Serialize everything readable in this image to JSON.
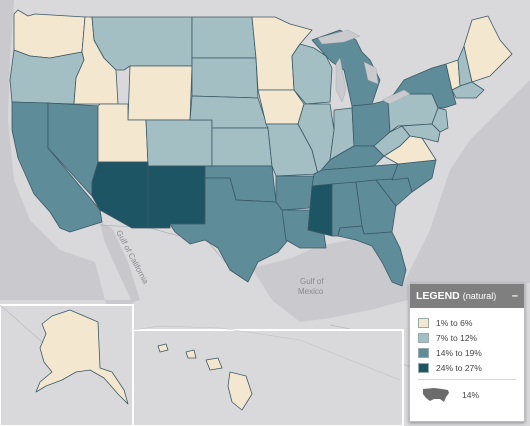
{
  "legend": {
    "title": "LEGEND",
    "subtitle": "(natural)",
    "minimize_label": "–",
    "classes": [
      {
        "label": "1% to 6%",
        "color": "#f3e8cf"
      },
      {
        "label": "7% to 12%",
        "color": "#a3bfc3"
      },
      {
        "label": "14% to 19%",
        "color": "#5f8c99"
      },
      {
        "label": "24% to 27%",
        "color": "#1e5564"
      }
    ],
    "us_value": "14%"
  },
  "map_labels": {
    "gulf_of_california": "Gulf of California",
    "gulf_of_mexico_line1": "Gulf of",
    "gulf_of_mexico_line2": "Mexico"
  },
  "colors": {
    "background_land": "#d9d9db",
    "water": "#c9c9cd",
    "state_border": "#3b5866"
  },
  "state_values": {
    "WA": "1% to 6%",
    "OR": "7% to 12%",
    "CA": "14% to 19%",
    "NV": "14% to 19%",
    "ID": "1% to 6%",
    "MT": "7% to 12%",
    "WY": "1% to 6%",
    "UT": "1% to 6%",
    "CO": "7% to 12%",
    "AZ": "24% to 27%",
    "NM": "24% to 27%",
    "ND": "7% to 12%",
    "SD": "7% to 12%",
    "NE": "7% to 12%",
    "KS": "7% to 12%",
    "OK": "14% to 19%",
    "TX": "14% to 19%",
    "MN": "1% to 6%",
    "IA": "1% to 6%",
    "MO": "7% to 12%",
    "AR": "14% to 19%",
    "LA": "14% to 19%",
    "WI": "7% to 12%",
    "IL": "7% to 12%",
    "MI": "14% to 19%",
    "IN": "7% to 12%",
    "OH": "14% to 19%",
    "KY": "14% to 19%",
    "TN": "14% to 19%",
    "MS": "24% to 27%",
    "AL": "14% to 19%",
    "GA": "14% to 19%",
    "FL": "14% to 19%",
    "SC": "14% to 19%",
    "NC": "14% to 19%",
    "VA": "1% to 6%",
    "WV": "7% to 12%",
    "PA": "7% to 12%",
    "NY": "14% to 19%",
    "ME": "1% to 6%",
    "VT": "1% to 6%",
    "NH": "7% to 12%",
    "MA": "7% to 12%",
    "NJ": "7% to 12%",
    "MD": "7% to 12%",
    "AK": "1% to 6%",
    "HI": "1% to 6%"
  }
}
